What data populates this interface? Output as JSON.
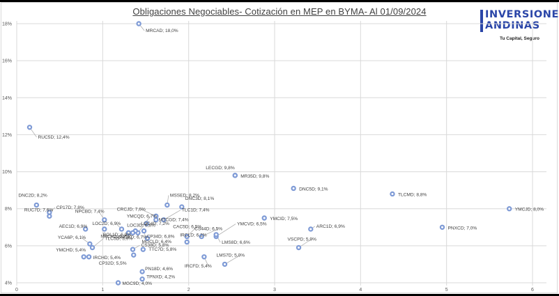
{
  "title": "Obligaciones Negociables- Cotización en MEP en BYMA- Al 01/09/2024",
  "logo": {
    "line1": "INVERSIONES",
    "line2": "ANDINAS",
    "tagline": "Tu Capital, Seguro",
    "color": "#2b46a8"
  },
  "colors": {
    "marker": "#7f9bd6",
    "marker_fill": "#ffffff",
    "gridline": "#d9d9d9",
    "leader": "#a6a6a6",
    "label": "#404040"
  },
  "chart_data": {
    "type": "scatter",
    "title": "Obligaciones Negociables- Cotización en MEP en BYMA- Al 01/09/2024",
    "xlabel": "",
    "ylabel": "",
    "xlim": [
      0,
      6
    ],
    "ylim": [
      0.04,
      0.18
    ],
    "x_ticks": [
      "0",
      "1",
      "2",
      "3",
      "4",
      "5",
      "6"
    ],
    "y_ticks": [
      "4%",
      "6%",
      "8%",
      "10%",
      "12%",
      "14%",
      "16%",
      "18%"
    ],
    "grid": true,
    "legend": "none",
    "points": [
      {
        "name": "MRCAD",
        "x": 1.42,
        "y": 0.18,
        "label": "MRCAD; 18,0%"
      },
      {
        "name": "RUC5D",
        "x": 0.15,
        "y": 0.124,
        "label": "RUC5D; 12,4%"
      },
      {
        "name": "LECGD",
        "x": 2.54,
        "y": 0.098,
        "label": "LECGD; 9,8%"
      },
      {
        "name": "MR35D",
        "x": 2.54,
        "y": 0.098,
        "label": "MR35D; 9,8%"
      },
      {
        "name": "DNC5D",
        "x": 3.22,
        "y": 0.091,
        "label": "DNC5D; 9,1%"
      },
      {
        "name": "TLCMD",
        "x": 4.37,
        "y": 0.088,
        "label": "TLCMD; 8,8%"
      },
      {
        "name": "YMCJD",
        "x": 5.73,
        "y": 0.08,
        "label": "YMCJD; 8,0%"
      },
      {
        "name": "DNC2D",
        "x": 0.23,
        "y": 0.082,
        "label": "DNC2D; 8,2%"
      },
      {
        "name": "RUC7D",
        "x": 0.38,
        "y": 0.076,
        "label": "RUC7D; 7,6%"
      },
      {
        "name": "CP17D",
        "x": 0.38,
        "y": 0.078,
        "label": "CP17D; 7,8%"
      },
      {
        "name": "NPCBD",
        "x": 1.02,
        "y": 0.074,
        "label": "NPCBD; 7,4%"
      },
      {
        "name": "BOL1D",
        "x": 1.02,
        "y": 0.069,
        "label": "BOL1D; 6,9%"
      },
      {
        "name": "CRCJD",
        "x": 1.62,
        "y": 0.076,
        "label": "CRCJD; 7,6%"
      },
      {
        "name": "MSSED",
        "x": 1.75,
        "y": 0.082,
        "label": "MSSED; 8,2%"
      },
      {
        "name": "DNC3D",
        "x": 1.92,
        "y": 0.081,
        "label": "DNC3D; 8,1%"
      },
      {
        "name": "YMCQD",
        "x": 1.41,
        "y": 0.067,
        "label": "YMCQD; 6,7%"
      },
      {
        "name": "TLC1D",
        "x": 1.71,
        "y": 0.074,
        "label": "TLC1D; 7,4%"
      },
      {
        "name": "MTCGD",
        "x": 1.62,
        "y": 0.074,
        "label": "MTCGD; 7,4%"
      },
      {
        "name": "LOC4D",
        "x": 1.51,
        "y": 0.072,
        "label": "LOC4D; 7,2%"
      },
      {
        "name": "YMCVD",
        "x": 2.32,
        "y": 0.065,
        "label": "YMCVD; 6,5%"
      },
      {
        "name": "CAC5D",
        "x": 1.98,
        "y": 0.065,
        "label": "CAC5D; 6,5%"
      },
      {
        "name": "CS44D",
        "x": 2.15,
        "y": 0.065,
        "label": "CS44D; 6,5%"
      },
      {
        "name": "IRCLD",
        "x": 1.98,
        "y": 0.062,
        "label": "IRCLD; 6,2%"
      },
      {
        "name": "LMS8D",
        "x": 2.32,
        "y": 0.066,
        "label": "LMS8D; 6,6%"
      },
      {
        "name": "YMCID",
        "x": 2.88,
        "y": 0.075,
        "label": "YMCID; 7,5%"
      },
      {
        "name": "ARC1D",
        "x": 3.42,
        "y": 0.069,
        "label": "ARC1D; 6,9%"
      },
      {
        "name": "VSCPD",
        "x": 3.28,
        "y": 0.059,
        "label": "VSCPD; 5,9%"
      },
      {
        "name": "PNXCD",
        "x": 4.95,
        "y": 0.07,
        "label": "PNXCD; 7,0%"
      },
      {
        "name": "AEC1D",
        "x": 0.8,
        "y": 0.069,
        "label": "AEC1D; 6,9%"
      },
      {
        "name": "LOC2D",
        "x": 1.22,
        "y": 0.069,
        "label": "LOC2D; 6,9%"
      },
      {
        "name": "LOC3D",
        "x": 1.38,
        "y": 0.068,
        "label": "LOC3D; 6,8%"
      },
      {
        "name": "NPCAD",
        "x": 1.3,
        "y": 0.067,
        "label": "NPCAD; 6,7%"
      },
      {
        "name": "GNCXD",
        "x": 1.35,
        "y": 0.067,
        "label": "GNCXD; 6,7%"
      },
      {
        "name": "MGCLD",
        "x": 1.52,
        "y": 0.064,
        "label": "MGCLD; 6,4%"
      },
      {
        "name": "YCA6P",
        "x": 0.85,
        "y": 0.061,
        "label": "YCA6P; 6,1%"
      },
      {
        "name": "TLC5D",
        "x": 0.88,
        "y": 0.059,
        "label": "TLC5D; 5,9%"
      },
      {
        "name": "YMCHD",
        "x": 0.78,
        "y": 0.054,
        "label": "YMCHD; 5,4%"
      },
      {
        "name": "IRCHD",
        "x": 0.84,
        "y": 0.054,
        "label": "IRCHD; 5,4%"
      },
      {
        "name": "TTC7D",
        "x": 1.47,
        "y": 0.058,
        "label": "TTC7D; 5,8%"
      },
      {
        "name": "CS38D",
        "x": 1.35,
        "y": 0.058,
        "label": "CS38D; 5,8%"
      },
      {
        "name": "CP32D",
        "x": 1.36,
        "y": 0.055,
        "label": "CP32D; 5,5%"
      },
      {
        "name": "CP34D",
        "x": 1.48,
        "y": 0.068,
        "label": "CP34D; 6,8%"
      },
      {
        "name": "IRCFD",
        "x": 2.18,
        "y": 0.054,
        "label": "IRCFD; 5,4%"
      },
      {
        "name": "LMS7D",
        "x": 2.42,
        "y": 0.05,
        "label": "LMS7D; 5,0%"
      },
      {
        "name": "PN18D",
        "x": 1.46,
        "y": 0.046,
        "label": "PN18D; 4,6%"
      },
      {
        "name": "MGC9D",
        "x": 1.18,
        "y": 0.04,
        "label": "MGC9D; 4,0%"
      },
      {
        "name": "TPNXD",
        "x": 1.46,
        "y": 0.042,
        "label": "TPNXD; 4,2%"
      }
    ]
  }
}
